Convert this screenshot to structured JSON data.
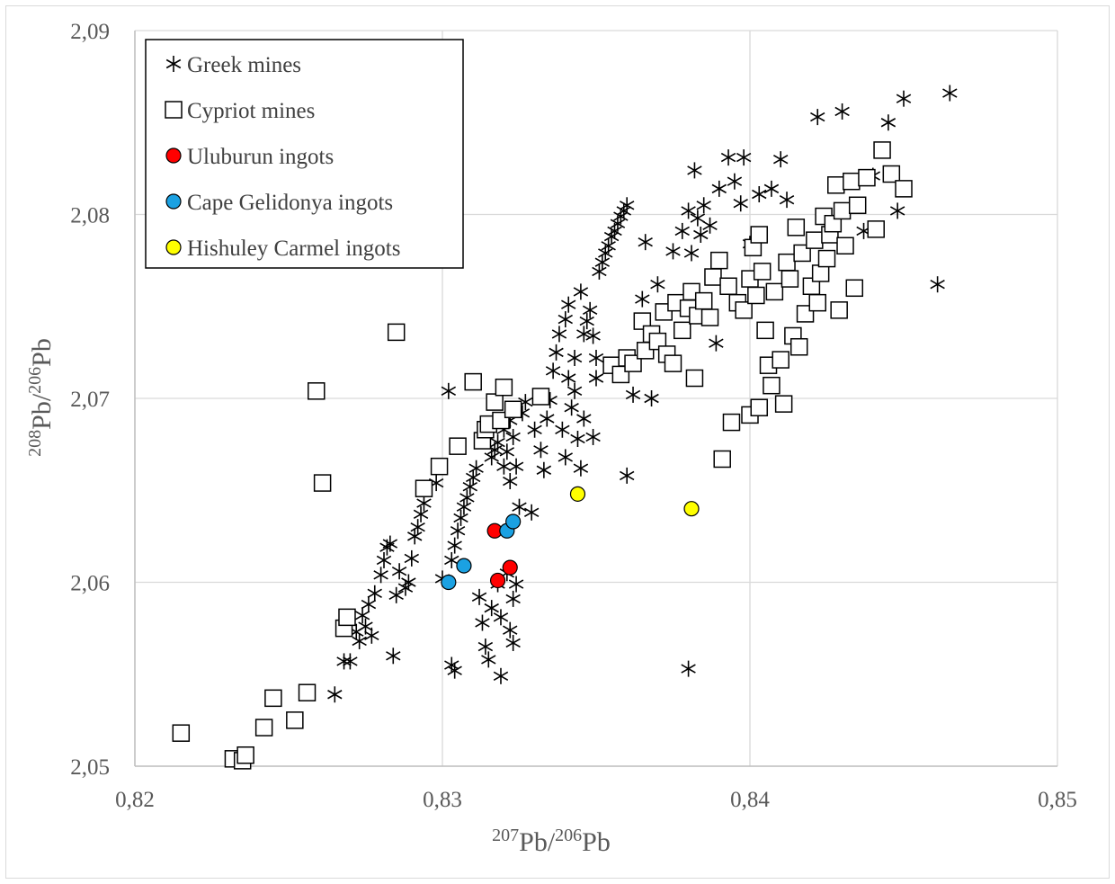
{
  "chart_data": {
    "type": "scatter",
    "title": "",
    "xlabel": {
      "sup1": "207",
      "base1": "Pb/",
      "sup2": "206",
      "base2": "Pb"
    },
    "ylabel": {
      "sup1": "208",
      "base1": "Pb/",
      "sup2": "206",
      "base2": "Pb"
    },
    "xlim": [
      0.82,
      0.85
    ],
    "ylim": [
      2.05,
      2.09
    ],
    "xticks": [
      0.82,
      0.83,
      0.84,
      0.85
    ],
    "yticks": [
      2.05,
      2.06,
      2.07,
      2.08,
      2.09
    ],
    "xtick_labels": [
      "0,82",
      "0,83",
      "0,84",
      "0,85"
    ],
    "ytick_labels": [
      "2,05",
      "2,06",
      "2,07",
      "2,08",
      "2,09"
    ],
    "grid": true,
    "legend_position": "top-left",
    "series": [
      {
        "name": "Greek mines",
        "marker": "asterisk",
        "color": "#000000",
        "points": [
          [
            0.8265,
            2.0539
          ],
          [
            0.8268,
            2.0557
          ],
          [
            0.827,
            2.0557
          ],
          [
            0.8272,
            2.0573
          ],
          [
            0.8273,
            2.0568
          ],
          [
            0.8274,
            2.0582
          ],
          [
            0.8275,
            2.0576
          ],
          [
            0.8276,
            2.0588
          ],
          [
            0.8277,
            2.0571
          ],
          [
            0.8278,
            2.0594
          ],
          [
            0.828,
            2.0604
          ],
          [
            0.8281,
            2.0612
          ],
          [
            0.8282,
            2.0619
          ],
          [
            0.8283,
            2.0621
          ],
          [
            0.8284,
            2.056
          ],
          [
            0.8285,
            2.0593
          ],
          [
            0.8286,
            2.0606
          ],
          [
            0.8288,
            2.0597
          ],
          [
            0.8289,
            2.06
          ],
          [
            0.829,
            2.0613
          ],
          [
            0.8291,
            2.0625
          ],
          [
            0.8292,
            2.063
          ],
          [
            0.8293,
            2.0637
          ],
          [
            0.8294,
            2.0643
          ],
          [
            0.8298,
            2.0654
          ],
          [
            0.83,
            2.0602
          ],
          [
            0.8302,
            2.0704
          ],
          [
            0.8303,
            2.0555
          ],
          [
            0.8304,
            2.0552
          ],
          [
            0.8303,
            2.0612
          ],
          [
            0.8304,
            2.062
          ],
          [
            0.8305,
            2.0628
          ],
          [
            0.8306,
            2.0635
          ],
          [
            0.8307,
            2.0641
          ],
          [
            0.8308,
            2.0646
          ],
          [
            0.8309,
            2.0652
          ],
          [
            0.831,
            2.0657
          ],
          [
            0.8311,
            2.0662
          ],
          [
            0.8312,
            2.0592
          ],
          [
            0.8313,
            2.0578
          ],
          [
            0.8314,
            2.0565
          ],
          [
            0.8315,
            2.0558
          ],
          [
            0.8316,
            2.0586
          ],
          [
            0.8316,
            2.0668
          ],
          [
            0.8317,
            2.0672
          ],
          [
            0.8318,
            2.0599
          ],
          [
            0.8318,
            2.0676
          ],
          [
            0.8319,
            2.0549
          ],
          [
            0.8319,
            2.0581
          ],
          [
            0.832,
            2.0663
          ],
          [
            0.832,
            2.0683
          ],
          [
            0.8321,
            2.0605
          ],
          [
            0.8321,
            2.0671
          ],
          [
            0.8322,
            2.0574
          ],
          [
            0.8322,
            2.0655
          ],
          [
            0.8322,
            2.0688
          ],
          [
            0.8323,
            2.0567
          ],
          [
            0.8323,
            2.0591
          ],
          [
            0.8323,
            2.0679
          ],
          [
            0.8324,
            2.0599
          ],
          [
            0.8324,
            2.0663
          ],
          [
            0.8325,
            2.0641
          ],
          [
            0.8326,
            2.0692
          ],
          [
            0.8327,
            2.0698
          ],
          [
            0.8329,
            2.0638
          ],
          [
            0.833,
            2.0683
          ],
          [
            0.8332,
            2.0672
          ],
          [
            0.8333,
            2.0661
          ],
          [
            0.8334,
            2.0689
          ],
          [
            0.8335,
            2.0699
          ],
          [
            0.8336,
            2.0715
          ],
          [
            0.8337,
            2.0725
          ],
          [
            0.8338,
            2.0735
          ],
          [
            0.8339,
            2.0683
          ],
          [
            0.834,
            2.0743
          ],
          [
            0.834,
            2.0668
          ],
          [
            0.8341,
            2.0751
          ],
          [
            0.8341,
            2.0711
          ],
          [
            0.8342,
            2.0695
          ],
          [
            0.8343,
            2.0704
          ],
          [
            0.8343,
            2.0722
          ],
          [
            0.8344,
            2.0678
          ],
          [
            0.8345,
            2.0758
          ],
          [
            0.8346,
            2.0689
          ],
          [
            0.8346,
            2.0735
          ],
          [
            0.8347,
            2.0742
          ],
          [
            0.8348,
            2.0748
          ],
          [
            0.8349,
            2.0734
          ],
          [
            0.835,
            2.0711
          ],
          [
            0.835,
            2.0722
          ],
          [
            0.8351,
            2.0769
          ],
          [
            0.8352,
            2.0774
          ],
          [
            0.8353,
            2.0779
          ],
          [
            0.8354,
            2.0783
          ],
          [
            0.8355,
            2.0788
          ],
          [
            0.8356,
            2.0791
          ],
          [
            0.8357,
            2.0795
          ],
          [
            0.8358,
            2.0799
          ],
          [
            0.8359,
            2.0802
          ],
          [
            0.836,
            2.0805
          ],
          [
            0.8345,
            2.0662
          ],
          [
            0.8349,
            2.0679
          ],
          [
            0.836,
            2.0658
          ],
          [
            0.8362,
            2.0702
          ],
          [
            0.8365,
            2.0754
          ],
          [
            0.8366,
            2.0785
          ],
          [
            0.8368,
            2.07
          ],
          [
            0.837,
            2.0762
          ],
          [
            0.8375,
            2.078
          ],
          [
            0.8378,
            2.0791
          ],
          [
            0.838,
            2.0802
          ],
          [
            0.8381,
            2.0779
          ],
          [
            0.8382,
            2.0824
          ],
          [
            0.8383,
            2.0798
          ],
          [
            0.8384,
            2.0789
          ],
          [
            0.8385,
            2.0805
          ],
          [
            0.8387,
            2.0794
          ],
          [
            0.8389,
            2.073
          ],
          [
            0.839,
            2.0814
          ],
          [
            0.8393,
            2.0831
          ],
          [
            0.8395,
            2.0818
          ],
          [
            0.8397,
            2.0806
          ],
          [
            0.8398,
            2.0831
          ],
          [
            0.84,
            2.0784
          ],
          [
            0.8403,
            2.0811
          ],
          [
            0.8407,
            2.0814
          ],
          [
            0.841,
            2.083
          ],
          [
            0.8412,
            2.0808
          ],
          [
            0.838,
            2.0553
          ],
          [
            0.8422,
            2.0853
          ],
          [
            0.843,
            2.0856
          ],
          [
            0.844,
            2.0821
          ],
          [
            0.8445,
            2.085
          ],
          [
            0.8448,
            2.0802
          ],
          [
            0.845,
            2.0863
          ],
          [
            0.8461,
            2.0762
          ],
          [
            0.8465,
            2.0866
          ],
          [
            0.8437,
            2.0791
          ]
        ]
      },
      {
        "name": "Cypriot mines",
        "marker": "open-square",
        "color": "#000000",
        "points": [
          [
            0.8215,
            2.0518
          ],
          [
            0.8232,
            2.0504
          ],
          [
            0.8235,
            2.0503
          ],
          [
            0.8236,
            2.0506
          ],
          [
            0.8242,
            2.0521
          ],
          [
            0.8245,
            2.0537
          ],
          [
            0.8252,
            2.0525
          ],
          [
            0.8256,
            2.054
          ],
          [
            0.8259,
            2.0704
          ],
          [
            0.8261,
            2.0654
          ],
          [
            0.8268,
            2.0575
          ],
          [
            0.8269,
            2.0581
          ],
          [
            0.8285,
            2.0736
          ],
          [
            0.8294,
            2.0651
          ],
          [
            0.8299,
            2.0663
          ],
          [
            0.8305,
            2.0674
          ],
          [
            0.831,
            2.0709
          ],
          [
            0.8313,
            2.0677
          ],
          [
            0.8314,
            2.0683
          ],
          [
            0.8315,
            2.0686
          ],
          [
            0.8317,
            2.0698
          ],
          [
            0.8319,
            2.0688
          ],
          [
            0.832,
            2.0706
          ],
          [
            0.8323,
            2.0694
          ],
          [
            0.8332,
            2.0701
          ],
          [
            0.8355,
            2.0718
          ],
          [
            0.8358,
            2.0713
          ],
          [
            0.836,
            2.0722
          ],
          [
            0.8362,
            2.0719
          ],
          [
            0.8365,
            2.0742
          ],
          [
            0.8366,
            2.0726
          ],
          [
            0.8368,
            2.0735
          ],
          [
            0.837,
            2.0731
          ],
          [
            0.8372,
            2.0747
          ],
          [
            0.8373,
            2.0724
          ],
          [
            0.8375,
            2.0719
          ],
          [
            0.8376,
            2.0752
          ],
          [
            0.8378,
            2.0737
          ],
          [
            0.838,
            2.0749
          ],
          [
            0.8381,
            2.0758
          ],
          [
            0.8382,
            2.0711
          ],
          [
            0.8383,
            2.0745
          ],
          [
            0.8385,
            2.0753
          ],
          [
            0.8387,
            2.0744
          ],
          [
            0.8388,
            2.0766
          ],
          [
            0.839,
            2.0775
          ],
          [
            0.8391,
            2.0667
          ],
          [
            0.8393,
            2.0761
          ],
          [
            0.8394,
            2.0687
          ],
          [
            0.8396,
            2.0752
          ],
          [
            0.8398,
            2.0748
          ],
          [
            0.84,
            2.0691
          ],
          [
            0.84,
            2.0765
          ],
          [
            0.8401,
            2.0782
          ],
          [
            0.8402,
            2.0756
          ],
          [
            0.8403,
            2.0695
          ],
          [
            0.8403,
            2.0789
          ],
          [
            0.8404,
            2.0769
          ],
          [
            0.8405,
            2.0737
          ],
          [
            0.8406,
            2.0718
          ],
          [
            0.8407,
            2.0707
          ],
          [
            0.8408,
            2.0758
          ],
          [
            0.841,
            2.0721
          ],
          [
            0.8411,
            2.0697
          ],
          [
            0.8412,
            2.0774
          ],
          [
            0.8413,
            2.0765
          ],
          [
            0.8414,
            2.0734
          ],
          [
            0.8415,
            2.0793
          ],
          [
            0.8416,
            2.0728
          ],
          [
            0.8417,
            2.0779
          ],
          [
            0.8418,
            2.0746
          ],
          [
            0.842,
            2.0761
          ],
          [
            0.8421,
            2.0786
          ],
          [
            0.8422,
            2.0752
          ],
          [
            0.8423,
            2.0768
          ],
          [
            0.8424,
            2.0799
          ],
          [
            0.8425,
            2.0776
          ],
          [
            0.8426,
            2.0789
          ],
          [
            0.8427,
            2.0795
          ],
          [
            0.8428,
            2.0816
          ],
          [
            0.8429,
            2.0748
          ],
          [
            0.843,
            2.0802
          ],
          [
            0.8431,
            2.0783
          ],
          [
            0.8433,
            2.0818
          ],
          [
            0.8434,
            2.076
          ],
          [
            0.8435,
            2.0805
          ],
          [
            0.8438,
            2.082
          ],
          [
            0.8441,
            2.0792
          ],
          [
            0.8443,
            2.0835
          ],
          [
            0.8446,
            2.0822
          ],
          [
            0.845,
            2.0814
          ]
        ]
      },
      {
        "name": "Uluburun ingots",
        "marker": "filled-circle",
        "color": "#ff0000",
        "points": [
          [
            0.8317,
            2.0628
          ],
          [
            0.8318,
            2.0601
          ],
          [
            0.8322,
            2.0608
          ]
        ]
      },
      {
        "name": "Cape Gelidonya ingots",
        "marker": "filled-circle",
        "color": "#1ba1e2",
        "points": [
          [
            0.8302,
            2.06
          ],
          [
            0.8307,
            2.0609
          ],
          [
            0.8321,
            2.0628
          ],
          [
            0.8323,
            2.0633
          ]
        ]
      },
      {
        "name": "Hishuley Carmel ingots",
        "marker": "filled-circle",
        "color": "#ffff00",
        "points": [
          [
            0.8344,
            2.0648
          ],
          [
            0.8381,
            2.064
          ]
        ]
      }
    ]
  }
}
